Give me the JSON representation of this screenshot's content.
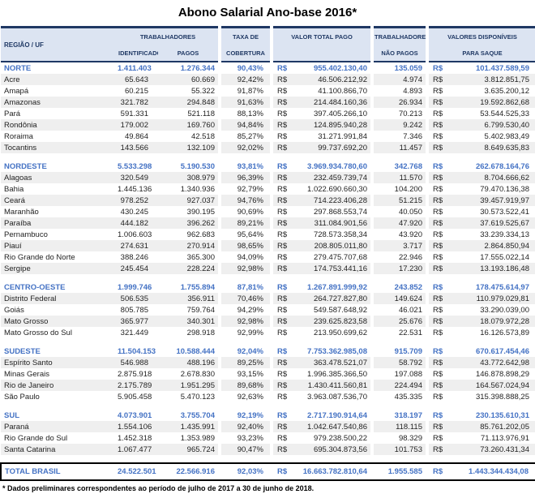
{
  "title": "Abono Salarial Ano-base 2016*",
  "footnote": "* Dados preliminares correspondentes ao período de julho de 2017 a 30 de junho de 2018.",
  "currency_symbol": "R$",
  "colors": {
    "header_bg": "#dce4f2",
    "header_text": "#1f3864",
    "region_text": "#4472c4",
    "stripe_bg": "#efefef",
    "total_border": "#000000"
  },
  "header": {
    "region": "REGIÃO / UF",
    "trabalhadores": "TRABALHADORES",
    "identificados": "IDENTIFICADOS",
    "pagos": "PAGOS",
    "taxa_line1": "TAXA DE",
    "taxa_line2": "COBERTURA",
    "valor_total": "VALOR TOTAL PAGO",
    "nao_pagos_line1": "TRABALHADORES",
    "nao_pagos_line2": "NÃO PAGOS",
    "valores_line1": "VALORES DISPONÍVEIS",
    "valores_line2": "PARA SAQUE"
  },
  "regions": [
    {
      "name": "NORTE",
      "identificados": "1.411.403",
      "pagos": "1.276.344",
      "taxa": "90,43%",
      "valor_total": "955.402.130,40",
      "nao_pagos": "135.059",
      "valores_disponiveis": "101.437.589,59",
      "states": [
        {
          "name": "Acre",
          "identificados": "65.643",
          "pagos": "60.669",
          "taxa": "92,42%",
          "valor_total": "46.506.212,92",
          "nao_pagos": "4.974",
          "valores_disponiveis": "3.812.851,75"
        },
        {
          "name": "Amapá",
          "identificados": "60.215",
          "pagos": "55.322",
          "taxa": "91,87%",
          "valor_total": "41.100.866,70",
          "nao_pagos": "4.893",
          "valores_disponiveis": "3.635.200,12"
        },
        {
          "name": "Amazonas",
          "identificados": "321.782",
          "pagos": "294.848",
          "taxa": "91,63%",
          "valor_total": "214.484.160,36",
          "nao_pagos": "26.934",
          "valores_disponiveis": "19.592.862,68"
        },
        {
          "name": "Pará",
          "identificados": "591.331",
          "pagos": "521.118",
          "taxa": "88,13%",
          "valor_total": "397.405.266,10",
          "nao_pagos": "70.213",
          "valores_disponiveis": "53.544.525,33"
        },
        {
          "name": "Rondônia",
          "identificados": "179.002",
          "pagos": "169.760",
          "taxa": "94,84%",
          "valor_total": "124.895.940,28",
          "nao_pagos": "9.242",
          "valores_disponiveis": "6.799.530,40"
        },
        {
          "name": "Roraima",
          "identificados": "49.864",
          "pagos": "42.518",
          "taxa": "85,27%",
          "valor_total": "31.271.991,84",
          "nao_pagos": "7.346",
          "valores_disponiveis": "5.402.983,49"
        },
        {
          "name": "Tocantins",
          "identificados": "143.566",
          "pagos": "132.109",
          "taxa": "92,02%",
          "valor_total": "99.737.692,20",
          "nao_pagos": "11.457",
          "valores_disponiveis": "8.649.635,83"
        }
      ]
    },
    {
      "name": "NORDESTE",
      "identificados": "5.533.298",
      "pagos": "5.190.530",
      "taxa": "93,81%",
      "valor_total": "3.969.934.780,60",
      "nao_pagos": "342.768",
      "valores_disponiveis": "262.678.164,76",
      "states": [
        {
          "name": "Alagoas",
          "identificados": "320.549",
          "pagos": "308.979",
          "taxa": "96,39%",
          "valor_total": "232.459.739,74",
          "nao_pagos": "11.570",
          "valores_disponiveis": "8.704.666,62"
        },
        {
          "name": "Bahia",
          "identificados": "1.445.136",
          "pagos": "1.340.936",
          "taxa": "92,79%",
          "valor_total": "1.022.690.660,30",
          "nao_pagos": "104.200",
          "valores_disponiveis": "79.470.136,38"
        },
        {
          "name": "Ceará",
          "identificados": "978.252",
          "pagos": "927.037",
          "taxa": "94,76%",
          "valor_total": "714.223.406,28",
          "nao_pagos": "51.215",
          "valores_disponiveis": "39.457.919,97"
        },
        {
          "name": "Maranhão",
          "identificados": "430.245",
          "pagos": "390.195",
          "taxa": "90,69%",
          "valor_total": "297.868.553,74",
          "nao_pagos": "40.050",
          "valores_disponiveis": "30.573.522,41"
        },
        {
          "name": "Paraíba",
          "identificados": "444.182",
          "pagos": "396.262",
          "taxa": "89,21%",
          "valor_total": "311.084.901,56",
          "nao_pagos": "47.920",
          "valores_disponiveis": "37.619.525,67"
        },
        {
          "name": "Pernambuco",
          "identificados": "1.006.603",
          "pagos": "962.683",
          "taxa": "95,64%",
          "valor_total": "728.573.358,34",
          "nao_pagos": "43.920",
          "valores_disponiveis": "33.239.334,13"
        },
        {
          "name": "Piauí",
          "identificados": "274.631",
          "pagos": "270.914",
          "taxa": "98,65%",
          "valor_total": "208.805.011,80",
          "nao_pagos": "3.717",
          "valores_disponiveis": "2.864.850,94"
        },
        {
          "name": "Rio Grande do Norte",
          "identificados": "388.246",
          "pagos": "365.300",
          "taxa": "94,09%",
          "valor_total": "279.475.707,68",
          "nao_pagos": "22.946",
          "valores_disponiveis": "17.555.022,14"
        },
        {
          "name": "Sergipe",
          "identificados": "245.454",
          "pagos": "228.224",
          "taxa": "92,98%",
          "valor_total": "174.753.441,16",
          "nao_pagos": "17.230",
          "valores_disponiveis": "13.193.186,48"
        }
      ]
    },
    {
      "name": "CENTRO-OESTE",
      "identificados": "1.999.746",
      "pagos": "1.755.894",
      "taxa": "87,81%",
      "valor_total": "1.267.891.999,92",
      "nao_pagos": "243.852",
      "valores_disponiveis": "178.475.614,97",
      "states": [
        {
          "name": "Distrito Federal",
          "identificados": "506.535",
          "pagos": "356.911",
          "taxa": "70,46%",
          "valor_total": "264.727.827,80",
          "nao_pagos": "149.624",
          "valores_disponiveis": "110.979.029,81"
        },
        {
          "name": "Goiás",
          "identificados": "805.785",
          "pagos": "759.764",
          "taxa": "94,29%",
          "valor_total": "549.587.648,92",
          "nao_pagos": "46.021",
          "valores_disponiveis": "33.290.039,00"
        },
        {
          "name": "Mato Grosso",
          "identificados": "365.977",
          "pagos": "340.301",
          "taxa": "92,98%",
          "valor_total": "239.625.823,58",
          "nao_pagos": "25.676",
          "valores_disponiveis": "18.079.972,28"
        },
        {
          "name": "Mato Grosso do Sul",
          "identificados": "321.449",
          "pagos": "298.918",
          "taxa": "92,99%",
          "valor_total": "213.950.699,62",
          "nao_pagos": "22.531",
          "valores_disponiveis": "16.126.573,89"
        }
      ]
    },
    {
      "name": "SUDESTE",
      "identificados": "11.504.153",
      "pagos": "10.588.444",
      "taxa": "92,04%",
      "valor_total": "7.753.362.985,08",
      "nao_pagos": "915.709",
      "valores_disponiveis": "670.617.454,46",
      "states": [
        {
          "name": "Espírito Santo",
          "identificados": "546.988",
          "pagos": "488.196",
          "taxa": "89,25%",
          "valor_total": "363.478.521,07",
          "nao_pagos": "58.792",
          "valores_disponiveis": "43.772.642,98"
        },
        {
          "name": "Minas Gerais",
          "identificados": "2.875.918",
          "pagos": "2.678.830",
          "taxa": "93,15%",
          "valor_total": "1.996.385.366,50",
          "nao_pagos": "197.088",
          "valores_disponiveis": "146.878.898,29"
        },
        {
          "name": "Rio de Janeiro",
          "identificados": "2.175.789",
          "pagos": "1.951.295",
          "taxa": "89,68%",
          "valor_total": "1.430.411.560,81",
          "nao_pagos": "224.494",
          "valores_disponiveis": "164.567.024,94"
        },
        {
          "name": "São Paulo",
          "identificados": "5.905.458",
          "pagos": "5.470.123",
          "taxa": "92,63%",
          "valor_total": "3.963.087.536,70",
          "nao_pagos": "435.335",
          "valores_disponiveis": "315.398.888,25"
        }
      ]
    },
    {
      "name": "SUL",
      "identificados": "4.073.901",
      "pagos": "3.755.704",
      "taxa": "92,19%",
      "valor_total": "2.717.190.914,64",
      "nao_pagos": "318.197",
      "valores_disponiveis": "230.135.610,31",
      "states": [
        {
          "name": "Paraná",
          "identificados": "1.554.106",
          "pagos": "1.435.991",
          "taxa": "92,40%",
          "valor_total": "1.042.647.540,86",
          "nao_pagos": "118.115",
          "valores_disponiveis": "85.761.202,05"
        },
        {
          "name": "Rio Grande do Sul",
          "identificados": "1.452.318",
          "pagos": "1.353.989",
          "taxa": "93,23%",
          "valor_total": "979.238.500,22",
          "nao_pagos": "98.329",
          "valores_disponiveis": "71.113.976,91"
        },
        {
          "name": "Santa Catarina",
          "identificados": "1.067.477",
          "pagos": "965.724",
          "taxa": "90,47%",
          "valor_total": "695.304.873,56",
          "nao_pagos": "101.753",
          "valores_disponiveis": "73.260.431,34"
        }
      ]
    }
  ],
  "total": {
    "name": "TOTAL BRASIL",
    "identificados": "24.522.501",
    "pagos": "22.566.916",
    "taxa": "92,03%",
    "valor_total": "16.663.782.810,64",
    "nao_pagos": "1.955.585",
    "valores_disponiveis": "1.443.344.434,08"
  }
}
